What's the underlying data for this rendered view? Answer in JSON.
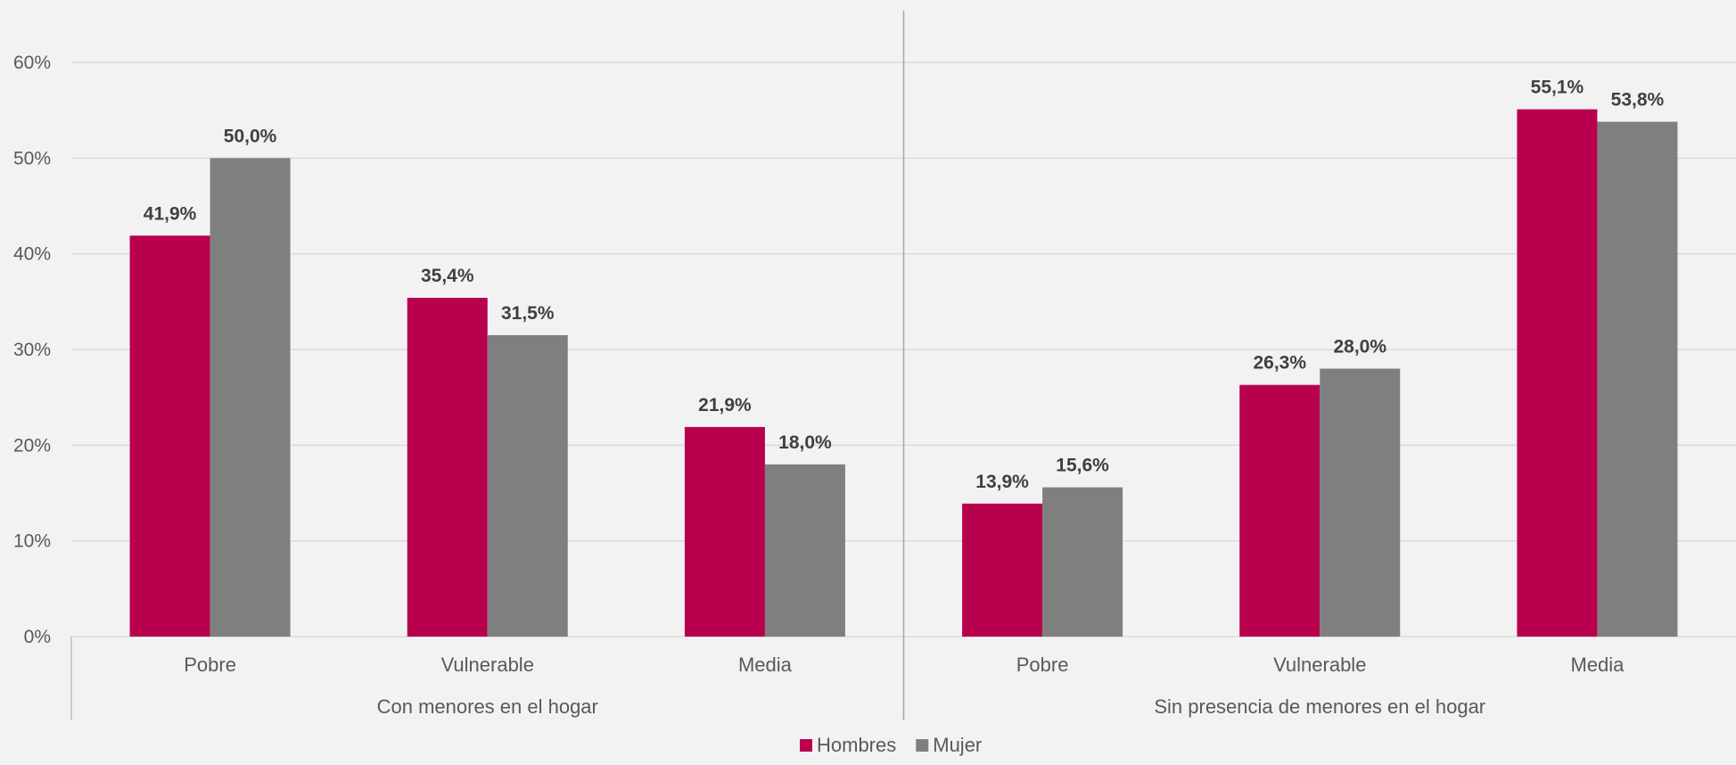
{
  "chart_data": {
    "type": "bar",
    "y_ticks": [
      "0%",
      "10%",
      "20%",
      "30%",
      "40%",
      "50%",
      "60%"
    ],
    "ylim": [
      0,
      60
    ],
    "grid": true,
    "legend_position": "bottom",
    "groups": [
      {
        "label": "Con menores en el hogar",
        "categories": [
          "Pobre",
          "Vulnerable",
          "Media"
        ]
      },
      {
        "label": "Sin presencia de menores en el hogar",
        "categories": [
          "Pobre",
          "Vulnerable",
          "Media"
        ]
      }
    ],
    "categories": [
      "Pobre",
      "Vulnerable",
      "Media",
      "Pobre",
      "Vulnerable",
      "Media"
    ],
    "series": [
      {
        "name": "Hombres",
        "color": "#b8004f",
        "values": [
          41.9,
          35.4,
          21.9,
          13.9,
          26.3,
          55.1
        ],
        "labels": [
          "41,9%",
          "35,4%",
          "21,9%",
          "13,9%",
          "26,3%",
          "55,1%"
        ]
      },
      {
        "name": "Mujer",
        "color": "#7f7f7f",
        "values": [
          50.0,
          31.5,
          18.0,
          15.6,
          28.0,
          53.8
        ],
        "labels": [
          "50,0%",
          "31,5%",
          "18,0%",
          "15,6%",
          "28,0%",
          "53,8%"
        ]
      }
    ]
  }
}
